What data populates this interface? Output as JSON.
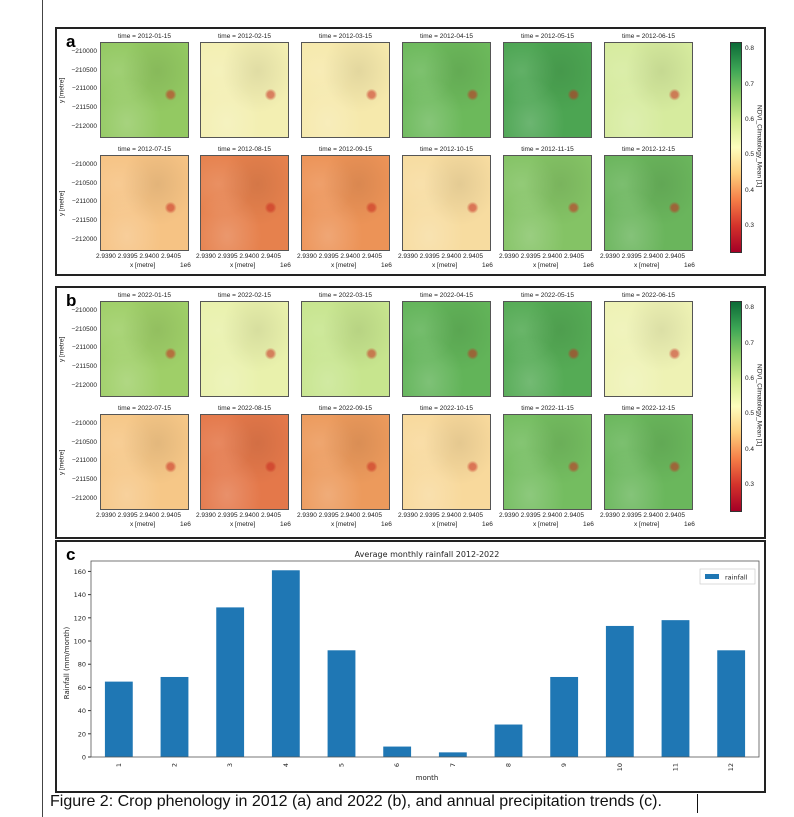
{
  "panels": [
    {
      "label": "a",
      "year": "2012",
      "titles": [
        "time = 2012-01-15",
        "time = 2012-02-15",
        "time = 2012-03-15",
        "time = 2012-04-15",
        "time = 2012-05-15",
        "time = 2012-06-15",
        "time = 2012-07-15",
        "time = 2012-08-15",
        "time = 2012-09-15",
        "time = 2012-10-15",
        "time = 2012-11-15",
        "time = 2012-12-15"
      ],
      "colors": [
        "#93c962",
        "#f3efb2",
        "#f6e9ac",
        "#6cb95b",
        "#4ca552",
        "#d6eb9e",
        "#f6c384",
        "#e6814d",
        "#ec9357",
        "#f7dca0",
        "#84c365",
        "#6ab55c"
      ]
    },
    {
      "label": "b",
      "year": "2022",
      "titles": [
        "time = 2022-01-15",
        "time = 2022-02-15",
        "time = 2022-03-15",
        "time = 2022-04-15",
        "time = 2022-05-15",
        "time = 2022-06-15",
        "time = 2022-07-15",
        "time = 2022-08-15",
        "time = 2022-09-15",
        "time = 2022-10-15",
        "time = 2022-11-15",
        "time = 2022-12-15"
      ],
      "colors": [
        "#9fcf68",
        "#e9f1ac",
        "#c7e58e",
        "#62b459",
        "#55ab55",
        "#eef2b4",
        "#f6c787",
        "#e4784a",
        "#ec9a5c",
        "#f8d99c",
        "#74bd60",
        "#6ab75c"
      ]
    }
  ],
  "map_axes": {
    "y_ticks": [
      "−210000",
      "−210500",
      "−211000",
      "−211500",
      "−212000"
    ],
    "y_label": "y [metre]",
    "x_ticks": "2.9390 2.9395 2.9400 2.9405",
    "x_label": "x [metre]",
    "x_offset": "1e6"
  },
  "colorbar": {
    "label": "NDVI_Climatology_Mean [1]",
    "ticks": [
      "0.8",
      "0.7",
      "0.6",
      "0.5",
      "0.4",
      "0.3"
    ],
    "range": [
      0.23,
      0.82
    ],
    "colormap": "RdYlGn"
  },
  "chart_data": {
    "type": "bar",
    "label": "c",
    "title": "Average monthly rainfall 2012-2022",
    "xlabel": "month",
    "ylabel": "Rainfall (mm/month)",
    "categories": [
      "1",
      "2",
      "3",
      "4",
      "5",
      "6",
      "7",
      "8",
      "9",
      "10",
      "11",
      "12"
    ],
    "series": [
      {
        "name": "rainfall",
        "values": [
          65,
          69,
          129,
          161,
          92,
          9,
          4,
          28,
          69,
          113,
          118,
          92
        ],
        "color": "#1f77b4"
      }
    ],
    "yticks": [
      "0",
      "20",
      "40",
      "60",
      "80",
      "100",
      "120",
      "140",
      "160"
    ],
    "ylim": [
      0,
      169
    ],
    "grid": false,
    "legend": "top-right"
  },
  "caption": "Figure 2: Crop phenology in 2012 (a) and 2022 (b), and annual precipitation trends (c)."
}
